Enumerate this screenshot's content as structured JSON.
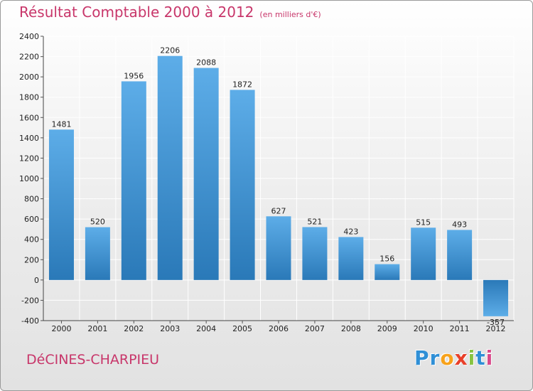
{
  "header": {
    "title": "Résultat Comptable 2000 à 2012",
    "subtitle": "(en milliers d'€)"
  },
  "footer": {
    "place": "DéCINES-CHARPIEU",
    "brand_letters": [
      "P",
      "r",
      "o",
      "x",
      "i",
      "t",
      "i"
    ]
  },
  "colors": {
    "title": "#c8366a",
    "bar_top": "#5dade8",
    "bar_bottom": "#2a79b8",
    "grid": "#ffffff",
    "brand": [
      "#2f8fd6",
      "#2f8fd6",
      "#f7a21b",
      "#e8402a",
      "#87c341",
      "#2f8fd6",
      "#d94a8b"
    ]
  },
  "chart_data": {
    "type": "bar",
    "title": "Résultat Comptable 2000 à 2012",
    "subtitle": "(en milliers d'€)",
    "xlabel": "",
    "ylabel": "",
    "categories": [
      "2000",
      "2001",
      "2002",
      "2003",
      "2004",
      "2005",
      "2006",
      "2007",
      "2008",
      "2009",
      "2010",
      "2011",
      "2012"
    ],
    "values": [
      1481,
      520,
      1956,
      2206,
      2088,
      1872,
      627,
      521,
      423,
      156,
      515,
      493,
      -357
    ],
    "ylim": [
      -400,
      2400
    ],
    "yticks": [
      -400,
      -200,
      0,
      200,
      400,
      600,
      800,
      1000,
      1200,
      1400,
      1600,
      1800,
      2000,
      2200,
      2400
    ],
    "grid": true,
    "legend": "none"
  }
}
